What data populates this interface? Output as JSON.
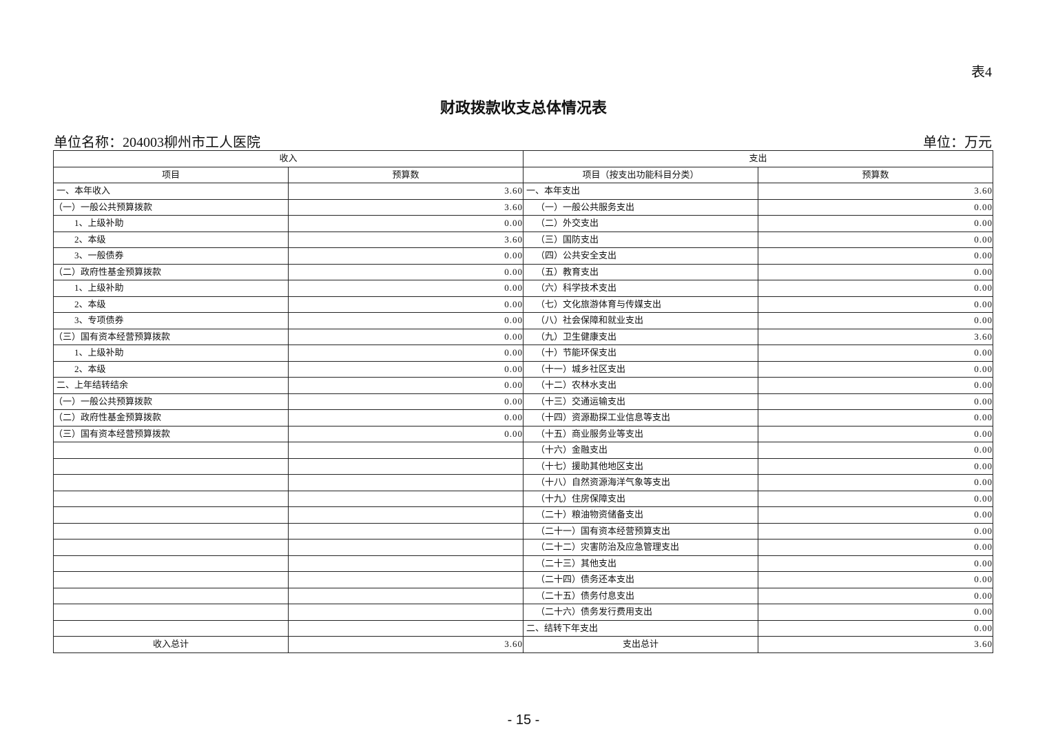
{
  "table_tag": "表4",
  "title": "财政拨款收支总体情况表",
  "unit_name": "单位名称：204003柳州市工人医院",
  "unit": "单位：万元",
  "headers": {
    "income": "收入",
    "expense": "支出",
    "income_item": "项目",
    "income_budget": "预算数",
    "expense_item": "项目（按支出功能科目分类）",
    "expense_budget": "预算数"
  },
  "rows": [
    [
      "一、本年收入",
      "3.60",
      "一、本年支出",
      "3.60"
    ],
    [
      "（一）一般公共预算拨款",
      "3.60",
      "（一）一般公共服务支出",
      "0.00"
    ],
    [
      "1、上级补助",
      "0.00",
      "（二）外交支出",
      "0.00"
    ],
    [
      "2、本级",
      "3.60",
      "（三）国防支出",
      "0.00"
    ],
    [
      "3、一般债券",
      "0.00",
      "（四）公共安全支出",
      "0.00"
    ],
    [
      "（二）政府性基金预算拨款",
      "0.00",
      "（五）教育支出",
      "0.00"
    ],
    [
      "1、上级补助",
      "0.00",
      "（六）科学技术支出",
      "0.00"
    ],
    [
      "2、本级",
      "0.00",
      "（七）文化旅游体育与传媒支出",
      "0.00"
    ],
    [
      "3、专项债券",
      "0.00",
      "（八）社会保障和就业支出",
      "0.00"
    ],
    [
      "（三）国有资本经营预算拨款",
      "0.00",
      "（九）卫生健康支出",
      "3.60"
    ],
    [
      "1、上级补助",
      "0.00",
      "（十）节能环保支出",
      "0.00"
    ],
    [
      "2、本级",
      "0.00",
      "（十一）城乡社区支出",
      "0.00"
    ],
    [
      "二、上年结转结余",
      "0.00",
      "（十二）农林水支出",
      "0.00"
    ],
    [
      "（一）一般公共预算拨款",
      "0.00",
      "（十三）交通运输支出",
      "0.00"
    ],
    [
      "（二）政府性基金预算拨款",
      "0.00",
      "（十四）资源勘探工业信息等支出",
      "0.00"
    ],
    [
      "（三）国有资本经营预算拨款",
      "0.00",
      "（十五）商业服务业等支出",
      "0.00"
    ],
    [
      "",
      "",
      "（十六）金融支出",
      "0.00"
    ],
    [
      "",
      "",
      "（十七）援助其他地区支出",
      "0.00"
    ],
    [
      "",
      "",
      "（十八）自然资源海洋气象等支出",
      "0.00"
    ],
    [
      "",
      "",
      "（十九）住房保障支出",
      "0.00"
    ],
    [
      "",
      "",
      "（二十）粮油物资储备支出",
      "0.00"
    ],
    [
      "",
      "",
      "（二十一）国有资本经营预算支出",
      "0.00"
    ],
    [
      "",
      "",
      "（二十二）灾害防治及应急管理支出",
      "0.00"
    ],
    [
      "",
      "",
      "（二十三）其他支出",
      "0.00"
    ],
    [
      "",
      "",
      "（二十四）债务还本支出",
      "0.00"
    ],
    [
      "",
      "",
      "（二十五）债务付息支出",
      "0.00"
    ],
    [
      "",
      "",
      "（二十六）债务发行费用支出",
      "0.00"
    ],
    [
      "",
      "",
      "二、结转下年支出",
      "0.00"
    ]
  ],
  "totals": {
    "income_label": "收入总计",
    "income_value": "3.60",
    "expense_label": "支出总计",
    "expense_value": "3.60"
  },
  "page_number": "- 15 -"
}
